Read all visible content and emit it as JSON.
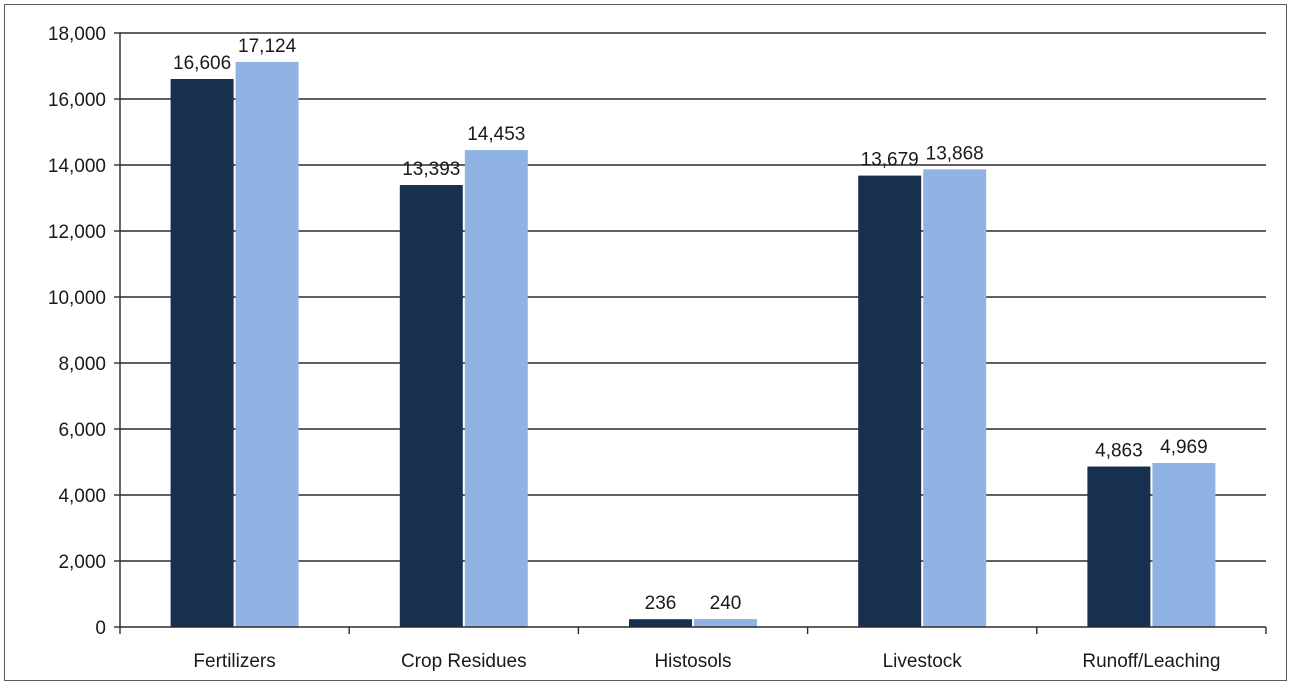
{
  "chart_data": {
    "type": "bar",
    "title": "",
    "xlabel": "",
    "ylabel": "",
    "categories": [
      "Fertilizers",
      "Crop Residues",
      "Histosols",
      "Livestock",
      "Runoff/Leaching"
    ],
    "series": [
      {
        "values": [
          16606,
          13393,
          236,
          13679,
          4863
        ],
        "color": "#17304f"
      },
      {
        "values": [
          17124,
          14453,
          240,
          13868,
          4969
        ],
        "color": "#8fb3e3"
      }
    ],
    "data_labels": [
      [
        "16,606",
        "13,393",
        "236",
        "13,679",
        "4,863"
      ],
      [
        "17,124",
        "14,453",
        "240",
        "13,868",
        "4,969"
      ]
    ],
    "ylim": [
      0,
      18000
    ],
    "yticks": [
      0,
      2000,
      4000,
      6000,
      8000,
      10000,
      12000,
      14000,
      16000,
      18000
    ],
    "ytick_labels": [
      "0",
      "2,000",
      "4,000",
      "6,000",
      "8,000",
      "10,000",
      "12,000",
      "14,000",
      "16,000",
      "18,000"
    ],
    "grid": true,
    "legend": "none"
  }
}
